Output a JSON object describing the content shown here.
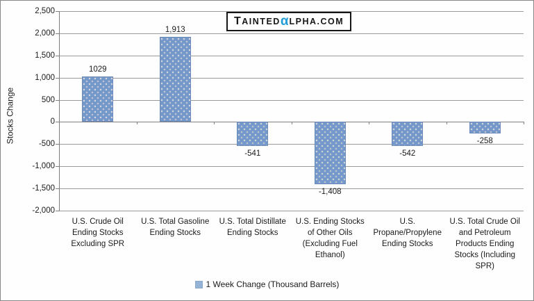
{
  "logo": {
    "lead": "T",
    "mid": "AINTED",
    "alpha": "α",
    "tail": "LPHA.COM",
    "alpha_color": "#219cd8",
    "text_color": "#161616"
  },
  "y_axis": {
    "title": "Stocks Change",
    "tick_labels": [
      "2,500",
      "2,000",
      "1,500",
      "1,000",
      "500",
      "0",
      "-500",
      "-1,000",
      "-1,500",
      "-2,000"
    ]
  },
  "legend": {
    "label": "1 Week Change (Thousand Barrels)",
    "marker_color": "#95b3d7"
  },
  "chart_data": {
    "type": "bar",
    "title": "",
    "xlabel": "",
    "ylabel": "Stocks Change",
    "categories": [
      "U.S. Crude Oil Ending Stocks Excluding SPR",
      "U.S. Total Gasoline Ending Stocks",
      "U.S. Total Distillate Ending Stocks",
      "U.S. Ending Stocks of Other Oils (Excluding Fuel Ethanol)",
      "U.S. Propane/Propylene Ending Stocks",
      "U.S. Total Crude Oil and Petroleum Products Ending Stocks (Including SPR)"
    ],
    "series": [
      {
        "name": "1 Week Change (Thousand Barrels)",
        "values": [
          1029,
          1913,
          -541,
          -1408,
          -542,
          -258
        ],
        "data_labels": [
          "1029",
          "1,913",
          "-541",
          "-1,408",
          "-542",
          "-258"
        ],
        "color": "#7598ca"
      }
    ],
    "ylim": [
      -2000,
      2500
    ],
    "ytick_interval": 500,
    "grid": true,
    "legend_position": "bottom"
  }
}
